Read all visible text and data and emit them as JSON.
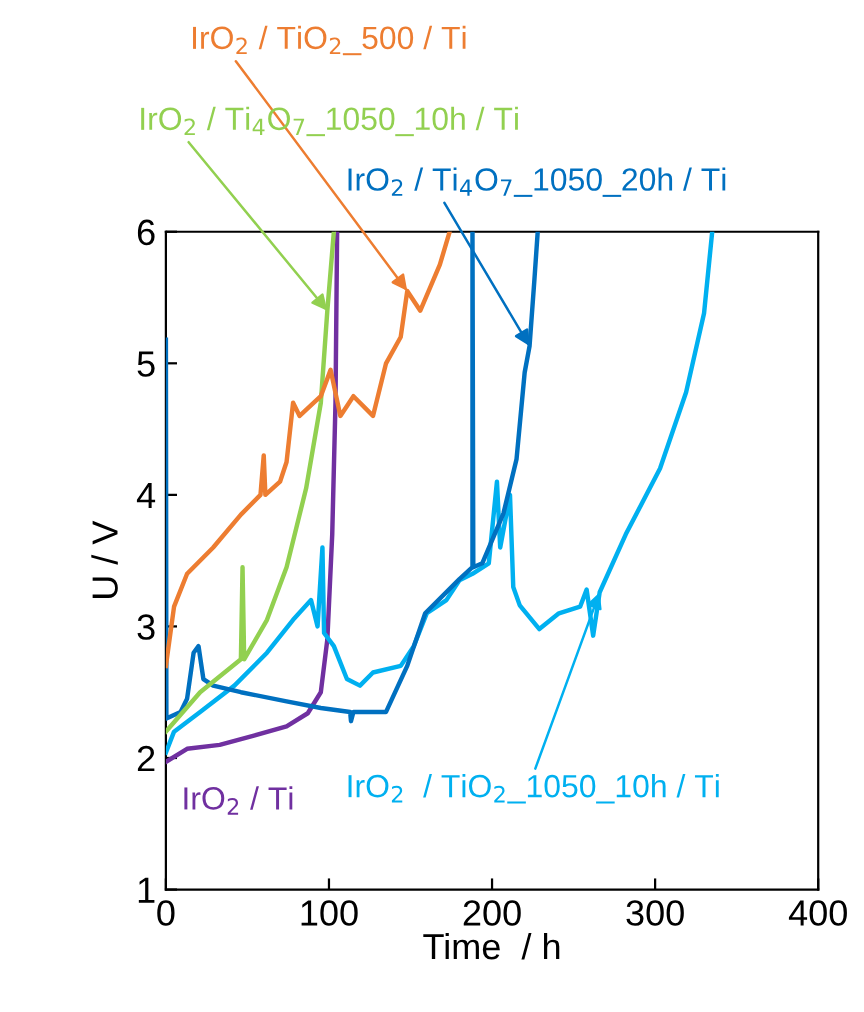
{
  "chart_data": {
    "type": "line",
    "xlabel": "Time  / h",
    "ylabel": "U / V",
    "xlim": [
      0,
      400
    ],
    "ylim": [
      1,
      6
    ],
    "xticks": [
      0,
      100,
      200,
      300,
      400
    ],
    "yticks": [
      1,
      2,
      3,
      4,
      5,
      6
    ],
    "grid": false,
    "legend": false,
    "marker": "none",
    "line_style": "solid",
    "series": [
      {
        "name": "IrO$_{2}$ / TiO$_{2}$_500 / Ti",
        "color": "#ed7d31",
        "x": [
          0,
          5,
          13,
          29,
          46,
          58,
          60,
          61,
          70,
          74,
          78,
          82,
          95,
          101,
          107,
          115,
          127,
          135,
          144,
          148,
          156,
          168,
          174
        ],
        "values": [
          2.7,
          3.15,
          3.4,
          3.6,
          3.85,
          4.0,
          4.3,
          4.0,
          4.1,
          4.25,
          4.7,
          4.6,
          4.75,
          4.95,
          4.6,
          4.75,
          4.6,
          5.0,
          5.2,
          5.55,
          5.4,
          5.75,
          6.0
        ]
      },
      {
        "name": "IrO$_{2}$ / Ti$_{4}$O$_{7}$_1050_10h / Ti",
        "color": "#92d050",
        "x": [
          0,
          21,
          46,
          47,
          48,
          62,
          74,
          86,
          95,
          99,
          103
        ],
        "values": [
          2.2,
          2.5,
          2.75,
          3.45,
          2.75,
          3.05,
          3.45,
          4.05,
          4.7,
          5.4,
          6.0
        ]
      },
      {
        "name": "IrO$_{2}$ / Ti$_{4}$O$_{7}$_1050_20h / Ti",
        "color": "#0070c0",
        "x": [
          0,
          0.3,
          9,
          13,
          17,
          20,
          23,
          29,
          46,
          54,
          74,
          95,
          113,
          113.5,
          115,
          135,
          148,
          159,
          180,
          188,
          188,
          188.5,
          194,
          207,
          215,
          220,
          223,
          226,
          228
        ],
        "values": [
          5.18,
          2.3,
          2.35,
          2.45,
          2.8,
          2.85,
          2.6,
          2.55,
          2.5,
          2.48,
          2.43,
          2.38,
          2.35,
          2.28,
          2.35,
          2.35,
          2.7,
          3.1,
          3.36,
          3.45,
          6.0,
          3.45,
          3.48,
          3.86,
          4.27,
          4.93,
          5.13,
          5.64,
          6.0
        ]
      },
      {
        "name": "IrO$_{2}$  / TiO$_{2}$_1050_10h / Ti",
        "color": "#00b0f0",
        "x": [
          0,
          5,
          21,
          42,
          62,
          78,
          89,
          93,
          96,
          97,
          103,
          111,
          119,
          127,
          144,
          152,
          160,
          172,
          180,
          188,
          198,
          203,
          205,
          211,
          213,
          217,
          229,
          241,
          254,
          258,
          262,
          266,
          282,
          303,
          319,
          330,
          335
        ],
        "values": [
          2.04,
          2.2,
          2.35,
          2.55,
          2.8,
          3.05,
          3.2,
          3.0,
          3.6,
          2.95,
          2.85,
          2.6,
          2.55,
          2.65,
          2.7,
          2.85,
          3.1,
          3.2,
          3.35,
          3.4,
          3.48,
          4.1,
          3.6,
          4.0,
          3.3,
          3.16,
          2.98,
          3.1,
          3.15,
          3.28,
          2.93,
          3.26,
          3.7,
          4.2,
          4.78,
          5.38,
          6.0
        ]
      },
      {
        "name": "IrO$_{2}$ / Ti",
        "color": "#7030a0",
        "x": [
          0,
          13,
          33,
          54,
          74,
          87,
          95,
          99,
          102,
          104,
          105
        ],
        "values": [
          1.97,
          2.07,
          2.1,
          2.17,
          2.24,
          2.34,
          2.5,
          2.9,
          3.7,
          4.7,
          6.0
        ]
      }
    ]
  }
}
